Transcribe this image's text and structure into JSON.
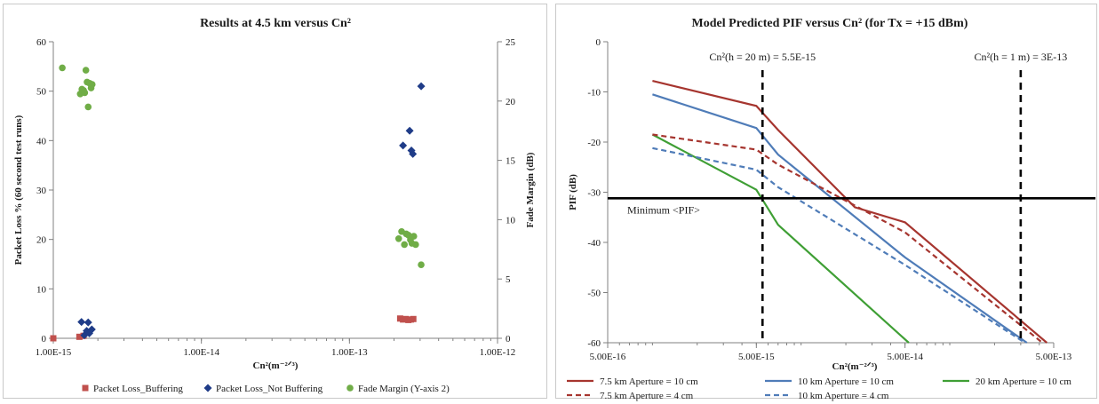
{
  "chart_data": [
    {
      "type": "scatter",
      "title": "Results at 4.5 km versus Cn²",
      "xlabel": "Cn²(m⁻²ᐟ³)",
      "ylabel": "Packet Loss % (60 second test runs)",
      "y2label": "Fade Margin (dB)",
      "x_scale": "log",
      "xlim": [
        1e-15,
        1e-12
      ],
      "ylim": [
        0,
        60
      ],
      "y2lim": [
        0,
        25
      ],
      "x_ticks": [
        1e-15,
        1e-14,
        1e-13,
        1e-12
      ],
      "x_tick_labels": [
        "1.00E-15",
        "1.00E-14",
        "1.00E-13",
        "1.00E-12"
      ],
      "y_ticks": [
        0,
        10,
        20,
        30,
        40,
        50,
        60
      ],
      "y2_ticks": [
        0,
        5,
        10,
        15,
        20,
        25
      ],
      "grid": false,
      "legend_position": "bottom",
      "series": [
        {
          "name": "Packet Loss_Buffering",
          "axis": "left",
          "marker": "square",
          "color": "#c0504d",
          "points": [
            [
              1e-15,
              0
            ],
            [
              1.5e-15,
              0.3
            ],
            [
              1.6e-15,
              0.5
            ],
            [
              2.2e-13,
              4.0
            ],
            [
              2.3e-13,
              3.8
            ],
            [
              2.4e-13,
              3.9
            ],
            [
              2.5e-13,
              3.7
            ],
            [
              2.6e-13,
              3.8
            ],
            [
              2.7e-13,
              3.9
            ]
          ]
        },
        {
          "name": "Packet Loss_Not Buffering",
          "axis": "left",
          "marker": "diamond",
          "color": "#1f3c88",
          "points": [
            [
              1.55e-15,
              3.3
            ],
            [
              1.62e-15,
              0.6
            ],
            [
              1.68e-15,
              1.5
            ],
            [
              1.72e-15,
              3.2
            ],
            [
              1.75e-15,
              1.0
            ],
            [
              1.82e-15,
              1.8
            ],
            [
              2.3e-13,
              39.0
            ],
            [
              2.55e-13,
              42.0
            ],
            [
              2.62e-13,
              38.0
            ],
            [
              2.68e-13,
              37.3
            ],
            [
              3.05e-13,
              51.0
            ]
          ]
        },
        {
          "name": "Fade Margin (Y-axis 2)",
          "axis": "right",
          "marker": "circle",
          "color": "#70ad47",
          "points": [
            [
              1.15e-15,
              22.8
            ],
            [
              1.52e-15,
              20.6
            ],
            [
              1.56e-15,
              21.0
            ],
            [
              1.6e-15,
              20.9
            ],
            [
              1.63e-15,
              20.7
            ],
            [
              1.66e-15,
              22.6
            ],
            [
              1.69e-15,
              21.6
            ],
            [
              1.72e-15,
              19.5
            ],
            [
              1.76e-15,
              21.5
            ],
            [
              1.8e-15,
              21.1
            ],
            [
              1.83e-15,
              21.4
            ],
            [
              2.15e-13,
              8.4
            ],
            [
              2.25e-13,
              9.0
            ],
            [
              2.35e-13,
              7.9
            ],
            [
              2.42e-13,
              8.8
            ],
            [
              2.5e-13,
              8.7
            ],
            [
              2.58e-13,
              8.3
            ],
            [
              2.64e-13,
              8.0
            ],
            [
              2.72e-13,
              8.6
            ],
            [
              2.8e-13,
              7.9
            ],
            [
              3.05e-13,
              6.2
            ]
          ]
        }
      ]
    },
    {
      "type": "line",
      "title": "Model Predicted PIF versus Cn² (for Tx = +15 dBm)",
      "xlabel": "Cn²(m⁻²ᐟ³)",
      "ylabel": "PIF (dB)",
      "x_scale": "log",
      "xlim": [
        5e-16,
        5e-13
      ],
      "ylim": [
        -60,
        0
      ],
      "x_ticks": [
        5e-16,
        5e-15,
        5e-14,
        5e-13
      ],
      "x_tick_labels": [
        "5.00E-16",
        "5.00E-15",
        "5.00E-14",
        "5.00E-13"
      ],
      "y_ticks": [
        0,
        -10,
        -20,
        -30,
        -40,
        -50,
        -60
      ],
      "grid": false,
      "legend_position": "bottom",
      "series": [
        {
          "name": "7.5 km Aperture = 10 cm",
          "color": "#a6352f",
          "dash": false,
          "points": [
            [
              1e-15,
              -7.8
            ],
            [
              5e-15,
              -12.8
            ],
            [
              7e-15,
              -17.6
            ],
            [
              2.3e-14,
              -33.0
            ],
            [
              5e-14,
              -36.0
            ],
            [
              4.5e-13,
              -60
            ]
          ]
        },
        {
          "name": "10 km Aperture = 10 cm",
          "color": "#4f7cb8",
          "dash": false,
          "points": [
            [
              1e-15,
              -10.5
            ],
            [
              5e-15,
              -17.2
            ],
            [
              7e-15,
              -22.5
            ],
            [
              5e-14,
              -43.0
            ],
            [
              3.3e-13,
              -60
            ]
          ]
        },
        {
          "name": "20 km Aperture = 10 cm",
          "color": "#3f9f35",
          "dash": false,
          "points": [
            [
              1e-15,
              -18.5
            ],
            [
              5e-15,
              -29.5
            ],
            [
              7e-15,
              -36.5
            ],
            [
              5.3e-14,
              -60
            ]
          ]
        },
        {
          "name": "7.5 km Aperture = 4 cm",
          "color": "#a6352f",
          "dash": true,
          "points": [
            [
              1e-15,
              -18.5
            ],
            [
              5e-15,
              -21.5
            ],
            [
              7e-15,
              -24.5
            ],
            [
              5e-14,
              -38.0
            ],
            [
              4.2e-13,
              -60
            ]
          ]
        },
        {
          "name": "10 km Aperture = 4 cm",
          "color": "#4f7cb8",
          "dash": true,
          "points": [
            [
              1e-15,
              -21.2
            ],
            [
              5e-15,
              -25.5
            ],
            [
              7e-15,
              -29.0
            ],
            [
              5e-14,
              -44.5
            ],
            [
              3.2e-13,
              -60
            ]
          ]
        }
      ],
      "vlines": [
        {
          "x": 5.5e-15,
          "label": "Cn²(h = 20 m) = 5.5E-15"
        },
        {
          "x": 3e-13,
          "label": "Cn²(h = 1 m) = 3E-13"
        }
      ],
      "hline": {
        "y": -31.2,
        "label": "Minimum <PIF>"
      }
    }
  ]
}
